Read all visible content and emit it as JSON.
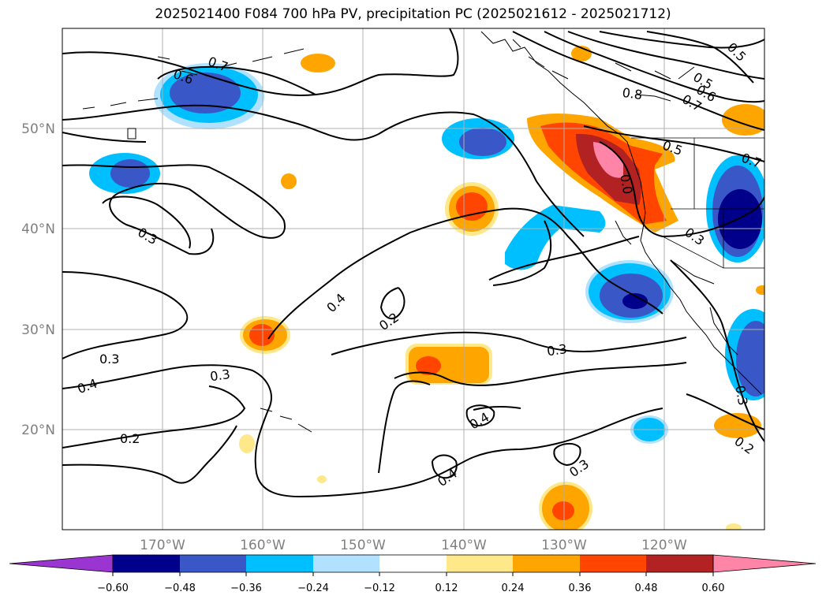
{
  "title": "2025021400 F084 700 hPa PV, precipitation PC (2025021612 - 2025021712)",
  "latitude_labels": [
    "50°N",
    "40°N",
    "30°N",
    "20°N"
  ],
  "longitude_labels": [
    "170°W",
    "160°W",
    "150°W",
    "140°W",
    "130°W",
    "120°W"
  ],
  "contour_labels": [
    "0.7",
    "0.6",
    "0.3",
    "0.4",
    "0.2",
    "0.3",
    "0.3",
    "0.4",
    "0.2",
    "0.4",
    "0.3",
    "0.4",
    "0.3",
    "0.8",
    "0.5",
    "0.6",
    "0.7",
    "0.5",
    "0.7",
    "0.5",
    "0.3",
    "0.3",
    "0.2",
    "0.0"
  ],
  "colorbar": {
    "ticks": [
      "−0.60",
      "−0.48",
      "−0.36",
      "−0.24",
      "−0.12",
      "0.12",
      "0.24",
      "0.36",
      "0.48",
      "0.60"
    ],
    "colors": [
      "#9a35d1",
      "#00008b",
      "#3a57c8",
      "#00bfff",
      "#b0e2ff",
      "#ffffff",
      "#ffe88a",
      "#ffa500",
      "#ff4500",
      "#b22222",
      "#ff85a8"
    ]
  },
  "shading_colors": {
    "neg_light": "#b0e2ff",
    "neg_mid": "#00bfff",
    "neg_strong": "#3a57c8",
    "neg_max": "#00008b",
    "pos_light": "#ffe88a",
    "pos_mid": "#ffa500",
    "pos_strong": "#ff4500",
    "pos_max": "#b22222",
    "pos_extreme": "#ff85a8"
  }
}
